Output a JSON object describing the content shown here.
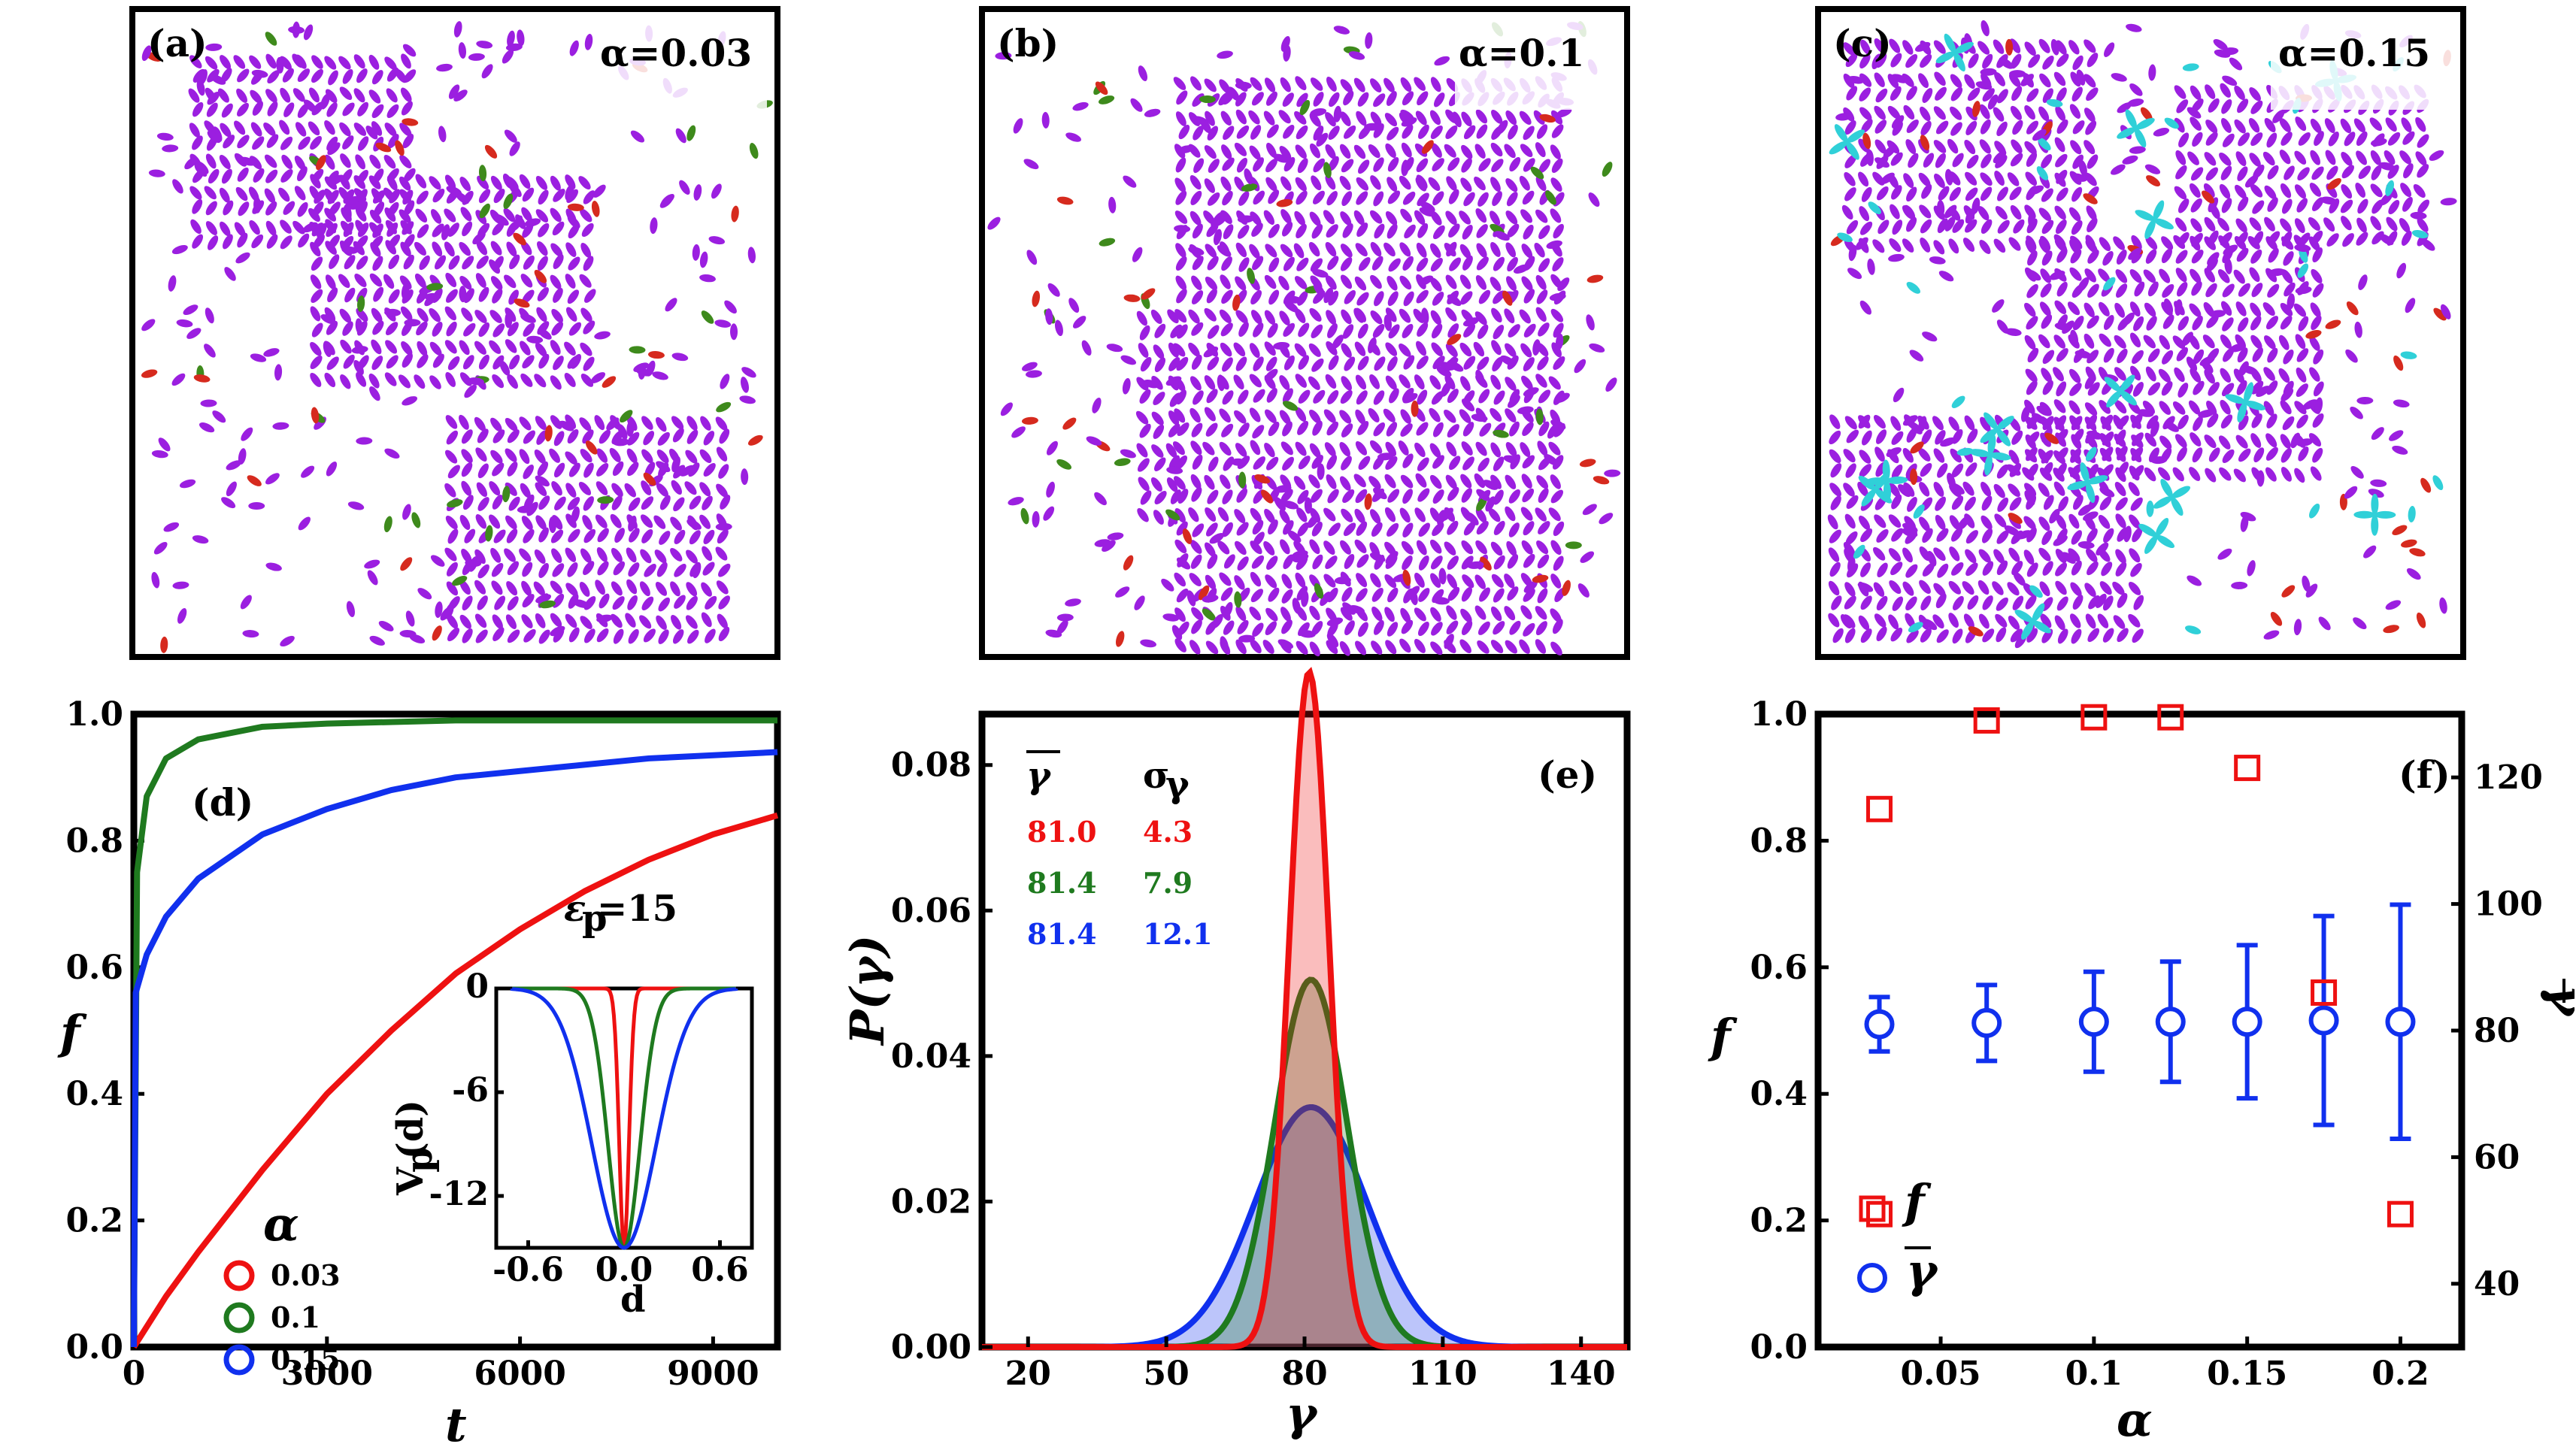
{
  "snapshots": [
    {
      "label": "(a)",
      "alpha_text": "α=0.03",
      "colors": [
        "#9b1fe0",
        "#d62a1e",
        "#3e8a1c"
      ]
    },
    {
      "label": "(b)",
      "alpha_text": "α=0.1",
      "colors": [
        "#9b1fe0",
        "#d62a1e",
        "#3e8a1c"
      ]
    },
    {
      "label": "(c)",
      "alpha_text": "α=0.15",
      "colors": [
        "#9b1fe0",
        "#30d0d8",
        "#d62a1e"
      ]
    }
  ],
  "chart_data": [
    {
      "panel": "(d)",
      "type": "line",
      "title": "",
      "xlabel": "t",
      "ylabel": "f",
      "xlim": [
        0,
        10000
      ],
      "ylim": [
        0,
        1
      ],
      "xticks": [
        "0",
        "3000",
        "6000",
        "9000"
      ],
      "yticks": [
        "0.0",
        "0.2",
        "0.4",
        "0.6",
        "0.8",
        "1.0"
      ],
      "annotation": "ε",
      "annotation_sub": "p",
      "annotation_value": "=15",
      "legend_title": "α",
      "series": [
        {
          "name": "0.03",
          "color": "#ee1111",
          "x": [
            0,
            500,
            1000,
            2000,
            3000,
            4000,
            5000,
            6000,
            7000,
            8000,
            9000,
            10000
          ],
          "y": [
            0.0,
            0.08,
            0.15,
            0.28,
            0.4,
            0.5,
            0.59,
            0.66,
            0.72,
            0.77,
            0.81,
            0.84
          ]
        },
        {
          "name": "0.1",
          "color": "#1f7a1f",
          "x": [
            0,
            50,
            200,
            500,
            1000,
            2000,
            3000,
            5000,
            7000,
            10000
          ],
          "y": [
            0.0,
            0.75,
            0.87,
            0.93,
            0.96,
            0.98,
            0.985,
            0.99,
            0.99,
            0.99
          ]
        },
        {
          "name": "0.15",
          "color": "#1030ee",
          "x": [
            0,
            30,
            200,
            500,
            1000,
            2000,
            3000,
            4000,
            5000,
            6000,
            7000,
            8000,
            9000,
            10000
          ],
          "y": [
            0.0,
            0.56,
            0.62,
            0.68,
            0.74,
            0.81,
            0.85,
            0.88,
            0.9,
            0.91,
            0.92,
            0.93,
            0.935,
            0.94
          ]
        }
      ],
      "inset": {
        "xlabel": "d",
        "ylabel": "V",
        "ylabel_sub": "p",
        "ylabel_arg": "(d)",
        "xlim": [
          -0.8,
          0.8
        ],
        "ylim": [
          -15,
          0
        ],
        "xticks": [
          "-0.6",
          "0.0",
          "0.6"
        ],
        "yticks": [
          "0",
          "-6",
          "-12"
        ],
        "series": [
          {
            "name": "0.03",
            "color": "#ee1111",
            "depth": -15,
            "sigma": 0.03
          },
          {
            "name": "0.1",
            "color": "#1f7a1f",
            "depth": -15,
            "sigma": 0.1
          },
          {
            "name": "0.15",
            "color": "#1030ee",
            "depth": -15,
            "sigma": 0.2
          }
        ]
      }
    },
    {
      "panel": "(e)",
      "type": "area",
      "title": "",
      "xlabel": "γ",
      "ylabel": "P(γ)",
      "xlim": [
        10,
        150
      ],
      "ylim": [
        0,
        0.087
      ],
      "xticks": [
        "20",
        "50",
        "80",
        "110",
        "140"
      ],
      "yticks": [
        "0.00",
        "0.02",
        "0.04",
        "0.06",
        "0.08"
      ],
      "table_headers": [
        "γ",
        "σ"
      ],
      "table_sub": "γ",
      "series": [
        {
          "name": "red",
          "color": "#ee1111",
          "fill": "rgba(238,17,17,0.28)",
          "mean": 81.0,
          "sigma": 4.3,
          "mean_text": "81.0",
          "sigma_text": "4.3"
        },
        {
          "name": "green",
          "color": "#1f7a1f",
          "fill": "rgba(31,122,31,0.28)",
          "mean": 81.4,
          "sigma": 7.9,
          "mean_text": "81.4",
          "sigma_text": "7.9"
        },
        {
          "name": "blue",
          "color": "#1030ee",
          "fill": "rgba(16,48,238,0.28)",
          "mean": 81.4,
          "sigma": 12.1,
          "mean_text": "81.4",
          "sigma_text": "12.1"
        }
      ]
    },
    {
      "panel": "(f)",
      "type": "scatter",
      "title": "",
      "xlabel": "α",
      "ylabel_left": "f",
      "ylabel_right": "γ",
      "xlim": [
        0.01,
        0.22
      ],
      "ylim_left": [
        0,
        1
      ],
      "ylim_right": [
        30,
        130
      ],
      "xticks": [
        "0.05",
        "0.1",
        "0.15",
        "0.2"
      ],
      "yticks_left": [
        "0.0",
        "0.2",
        "0.4",
        "0.6",
        "0.8",
        "1.0"
      ],
      "yticks_right": [
        "40",
        "60",
        "80",
        "100",
        "120"
      ],
      "legend": [
        {
          "name": "f",
          "color": "#ee1111"
        },
        {
          "name": "γ",
          "color": "#1030ee"
        }
      ],
      "f_series": {
        "color": "#ee1111",
        "x": [
          0.03,
          0.065,
          0.1,
          0.125,
          0.15,
          0.175,
          0.2
        ],
        "y": [
          0.85,
          0.99,
          0.995,
          0.995,
          0.915,
          0.56,
          0.21
        ]
      },
      "f_extra": {
        "x": [
          0.03
        ],
        "y": [
          0.21
        ]
      },
      "gamma_series": {
        "color": "#1030ee",
        "x": [
          0.03,
          0.065,
          0.1,
          0.125,
          0.15,
          0.175,
          0.2
        ],
        "y": [
          81.0,
          81.2,
          81.4,
          81.4,
          81.4,
          81.6,
          81.4
        ],
        "err": [
          4.3,
          6.0,
          7.9,
          9.5,
          12.1,
          16.5,
          18.5
        ]
      }
    }
  ]
}
